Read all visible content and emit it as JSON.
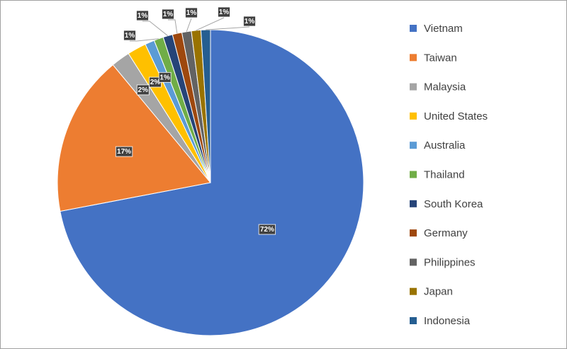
{
  "chart_data": {
    "type": "pie",
    "categories": [
      "Vietnam",
      "Taiwan",
      "Malaysia",
      "United States",
      "Australia",
      "Thailand",
      "South Korea",
      "Germany",
      "Philippines",
      "Japan",
      "Indonesia"
    ],
    "values": [
      72,
      17,
      2,
      2,
      1,
      1,
      1,
      1,
      1,
      1,
      1
    ],
    "value_labels": [
      "72%",
      "17%",
      "2%",
      "2%",
      "1%",
      "1%",
      "1%",
      "1%",
      "1%",
      "1%",
      "1%"
    ],
    "colors": [
      "#4472c4",
      "#ed7d31",
      "#a5a5a5",
      "#ffc000",
      "#5b9bd5",
      "#70ad47",
      "#264478",
      "#9e480e",
      "#636363",
      "#997300",
      "#255e91"
    ],
    "legend": "right"
  }
}
